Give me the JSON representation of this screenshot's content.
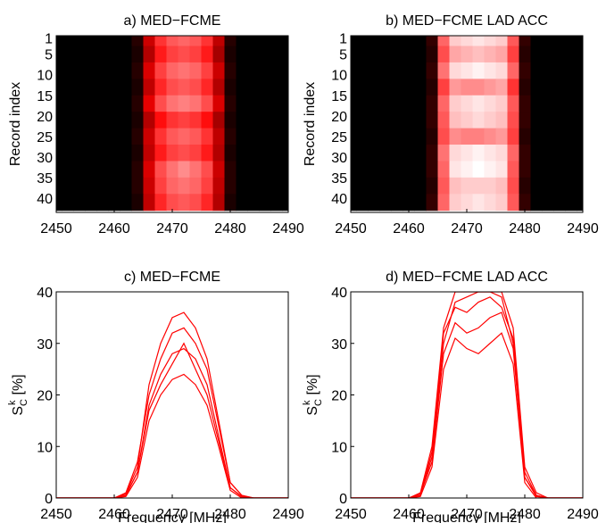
{
  "chart_data": [
    {
      "type": "heatmap",
      "title": "a) MED−FCME",
      "ylabel": "Record index",
      "x": [
        2450,
        2452,
        2454,
        2456,
        2458,
        2460,
        2462,
        2464,
        2466,
        2468,
        2470,
        2472,
        2474,
        2476,
        2478,
        2480,
        2482,
        2484,
        2486,
        2488,
        2490
      ],
      "y": [
        1,
        5,
        9,
        13,
        17,
        21,
        25,
        29,
        33,
        37,
        41
      ],
      "z": [
        [
          0,
          0,
          0,
          0,
          0,
          0,
          0,
          3,
          16,
          24,
          27,
          28,
          27,
          24,
          15,
          3,
          0,
          0,
          0,
          0,
          0
        ],
        [
          0,
          0,
          0,
          0,
          0,
          0,
          0,
          2,
          14,
          22,
          25,
          26,
          25,
          22,
          13,
          2,
          0,
          0,
          0,
          0,
          0
        ],
        [
          0,
          0,
          0,
          0,
          0,
          0,
          0,
          3,
          17,
          25,
          28,
          29,
          28,
          25,
          16,
          3,
          0,
          0,
          0,
          0,
          0
        ],
        [
          0,
          0,
          0,
          0,
          0,
          0,
          0,
          2,
          15,
          23,
          26,
          27,
          26,
          23,
          14,
          2,
          0,
          0,
          0,
          0,
          0
        ],
        [
          0,
          0,
          0,
          0,
          0,
          0,
          0,
          3,
          18,
          26,
          29,
          30,
          29,
          26,
          17,
          3,
          0,
          0,
          0,
          0,
          0
        ],
        [
          0,
          0,
          0,
          0,
          0,
          0,
          0,
          2,
          14,
          21,
          24,
          25,
          24,
          21,
          13,
          2,
          0,
          0,
          0,
          0,
          0
        ],
        [
          0,
          0,
          0,
          0,
          0,
          0,
          0,
          3,
          16,
          24,
          27,
          28,
          27,
          24,
          15,
          3,
          0,
          0,
          0,
          0,
          0
        ],
        [
          0,
          0,
          0,
          0,
          0,
          0,
          0,
          2,
          15,
          22,
          25,
          26,
          25,
          22,
          14,
          2,
          0,
          0,
          0,
          0,
          0
        ],
        [
          0,
          0,
          0,
          0,
          0,
          0,
          0,
          3,
          17,
          26,
          29,
          31,
          29,
          26,
          16,
          3,
          0,
          0,
          0,
          0,
          0
        ],
        [
          0,
          0,
          0,
          0,
          0,
          0,
          0,
          3,
          16,
          25,
          28,
          29,
          28,
          25,
          15,
          3,
          0,
          0,
          0,
          0,
          0
        ],
        [
          0,
          0,
          0,
          0,
          0,
          0,
          0,
          2,
          15,
          23,
          26,
          27,
          26,
          23,
          14,
          2,
          0,
          0,
          0,
          0,
          0
        ]
      ],
      "zlim": [
        0,
        40
      ],
      "colormap": [
        "#000000",
        "#ff0000",
        "#ffffff"
      ],
      "xlim": [
        2450,
        2490
      ],
      "xticks": [
        2450,
        2460,
        2470,
        2480,
        2490
      ],
      "ylim": [
        0.5,
        43.5
      ],
      "yticks": [
        1,
        5,
        10,
        15,
        20,
        25,
        30,
        35,
        40
      ],
      "y_reversed": true
    },
    {
      "type": "heatmap",
      "title": "b) MED−FCME LAD ACC",
      "ylabel": "Record index",
      "x": [
        2450,
        2452,
        2454,
        2456,
        2458,
        2460,
        2462,
        2464,
        2466,
        2468,
        2470,
        2472,
        2474,
        2476,
        2478,
        2480,
        2482,
        2484,
        2486,
        2488,
        2490
      ],
      "y": [
        1,
        5,
        9,
        13,
        17,
        21,
        25,
        29,
        33,
        37,
        41
      ],
      "z": [
        [
          0,
          0,
          0,
          0,
          0,
          0,
          0,
          4,
          28,
          36,
          37,
          38,
          37,
          36,
          27,
          4,
          0,
          0,
          0,
          0,
          0
        ],
        [
          0,
          0,
          0,
          0,
          0,
          0,
          0,
          3,
          26,
          33,
          34,
          35,
          34,
          33,
          25,
          3,
          0,
          0,
          0,
          0,
          0
        ],
        [
          0,
          0,
          0,
          0,
          0,
          0,
          0,
          4,
          29,
          37,
          38,
          39,
          38,
          37,
          28,
          4,
          0,
          0,
          0,
          0,
          0
        ],
        [
          0,
          0,
          0,
          0,
          0,
          0,
          0,
          3,
          25,
          32,
          31,
          31,
          32,
          33,
          24,
          3,
          0,
          0,
          0,
          0,
          0
        ],
        [
          0,
          0,
          0,
          0,
          0,
          0,
          0,
          4,
          28,
          36,
          37,
          38,
          37,
          36,
          27,
          4,
          0,
          0,
          0,
          0,
          0
        ],
        [
          0,
          0,
          0,
          0,
          0,
          0,
          0,
          4,
          27,
          35,
          36,
          37,
          36,
          35,
          26,
          4,
          0,
          0,
          0,
          0,
          0
        ],
        [
          0,
          0,
          0,
          0,
          0,
          0,
          0,
          3,
          26,
          31,
          30,
          30,
          31,
          32,
          25,
          3,
          0,
          0,
          0,
          0,
          0
        ],
        [
          0,
          0,
          0,
          0,
          0,
          0,
          0,
          4,
          29,
          37,
          38,
          39,
          38,
          37,
          28,
          4,
          0,
          0,
          0,
          0,
          0
        ],
        [
          0,
          0,
          0,
          0,
          0,
          0,
          0,
          4,
          28,
          38,
          39,
          40,
          39,
          38,
          27,
          4,
          0,
          0,
          0,
          0,
          0
        ],
        [
          0,
          0,
          0,
          0,
          0,
          0,
          0,
          3,
          27,
          35,
          36,
          36,
          36,
          35,
          26,
          3,
          0,
          0,
          0,
          0,
          0
        ],
        [
          0,
          0,
          0,
          0,
          0,
          0,
          0,
          4,
          28,
          36,
          37,
          38,
          37,
          36,
          27,
          4,
          0,
          0,
          0,
          0,
          0
        ]
      ],
      "zlim": [
        0,
        40
      ],
      "colormap": [
        "#000000",
        "#ff0000",
        "#ffffff"
      ],
      "xlim": [
        2450,
        2490
      ],
      "xticks": [
        2450,
        2460,
        2470,
        2480,
        2490
      ],
      "ylim": [
        0.5,
        43.5
      ],
      "yticks": [
        1,
        5,
        10,
        15,
        20,
        25,
        30,
        35,
        40
      ],
      "y_reversed": true
    },
    {
      "type": "line",
      "title": "c) MED−FCME",
      "ylabel": {
        "base": "S",
        "sub": "C",
        "sup": "k",
        "unit": "[%]"
      },
      "xlabel": "Frequency [MHz]",
      "x": [
        2450,
        2452,
        2454,
        2456,
        2458,
        2460,
        2462,
        2464,
        2466,
        2468,
        2470,
        2472,
        2474,
        2476,
        2478,
        2480,
        2482,
        2484,
        2486,
        2488,
        2490
      ],
      "series": [
        {
          "color": "#ff0000",
          "values": [
            0,
            0,
            0,
            0,
            0,
            0,
            0.5,
            5,
            18,
            24,
            28,
            29,
            27,
            22,
            12,
            2,
            0.3,
            0,
            0,
            0,
            0
          ]
        },
        {
          "color": "#ff0000",
          "values": [
            0,
            0,
            0,
            0,
            0,
            0,
            1,
            7,
            20,
            27,
            32,
            33,
            30,
            25,
            14,
            3,
            0.5,
            0,
            0,
            0,
            0
          ]
        },
        {
          "color": "#ff0000",
          "values": [
            0,
            0,
            0,
            0,
            0,
            0,
            0.3,
            4,
            15,
            20,
            23,
            24,
            22,
            18,
            10,
            1.5,
            0,
            0,
            0,
            0,
            0
          ]
        },
        {
          "color": "#ff0000",
          "values": [
            0,
            0,
            0,
            0,
            0,
            0,
            0.8,
            6,
            22,
            30,
            35,
            36,
            33,
            27,
            15,
            3,
            0.5,
            0,
            0,
            0,
            0
          ]
        },
        {
          "color": "#ff0000",
          "values": [
            0,
            0,
            0,
            0,
            0,
            0,
            0.5,
            5,
            17,
            22,
            26,
            30,
            25,
            20,
            11,
            2,
            0.2,
            0,
            0,
            0,
            0
          ]
        }
      ],
      "xlim": [
        2450,
        2490
      ],
      "xticks": [
        2450,
        2460,
        2470,
        2480,
        2490
      ],
      "ylim": [
        0,
        40
      ],
      "yticks": [
        0,
        10,
        20,
        30,
        40
      ]
    },
    {
      "type": "line",
      "title": "d) MED−FCME LAD ACC",
      "ylabel": {
        "base": "S",
        "sub": "C",
        "sup": "k",
        "unit": "[%]"
      },
      "xlabel": "Frequency [MHz]",
      "x": [
        2450,
        2452,
        2454,
        2456,
        2458,
        2460,
        2462,
        2464,
        2466,
        2468,
        2470,
        2472,
        2474,
        2476,
        2478,
        2480,
        2482,
        2484,
        2486,
        2488,
        2490
      ],
      "series": [
        {
          "color": "#ff0000",
          "values": [
            0,
            0,
            0,
            0,
            0,
            0,
            0.5,
            8,
            30,
            38,
            39,
            40,
            40,
            39,
            30,
            4,
            0.5,
            0,
            0,
            0,
            0
          ]
        },
        {
          "color": "#ff0000",
          "values": [
            0,
            0,
            0,
            0,
            0,
            0,
            1,
            10,
            33,
            40,
            40,
            40,
            40,
            40,
            33,
            6,
            1,
            0,
            0,
            0,
            0
          ]
        },
        {
          "color": "#ff0000",
          "values": [
            0,
            0,
            0,
            0,
            0,
            0,
            0.3,
            6,
            25,
            31,
            29,
            28,
            30,
            32,
            26,
            3,
            0,
            0,
            0,
            0,
            0
          ]
        },
        {
          "color": "#ff0000",
          "values": [
            0,
            0,
            0,
            0,
            0,
            0,
            0.5,
            9,
            32,
            37,
            36,
            38,
            39,
            37,
            31,
            5,
            0.5,
            0,
            0,
            0,
            0
          ]
        },
        {
          "color": "#ff0000",
          "values": [
            0,
            0,
            0,
            0,
            0,
            0,
            0.8,
            7,
            28,
            34,
            32,
            33,
            35,
            36,
            29,
            4,
            0.3,
            0,
            0,
            0,
            0
          ]
        }
      ],
      "xlim": [
        2450,
        2490
      ],
      "xticks": [
        2450,
        2460,
        2470,
        2480,
        2490
      ],
      "ylim": [
        0,
        40
      ],
      "yticks": [
        0,
        10,
        20,
        30,
        40
      ]
    }
  ]
}
